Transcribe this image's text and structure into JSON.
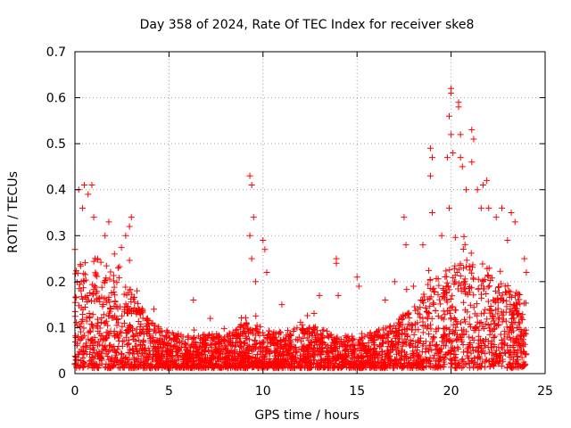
{
  "chart_data": {
    "type": "scatter",
    "title": "Day 358 of 2024, Rate Of TEC Index for receiver ske8",
    "xlabel": "GPS time / hours",
    "ylabel": "ROTI / TECUs",
    "xlim": [
      0,
      25
    ],
    "ylim": [
      0,
      0.7
    ],
    "xticks": [
      0,
      5,
      10,
      15,
      20,
      25
    ],
    "xtick_labels": [
      "0",
      "5",
      "10",
      "15",
      "20",
      "25"
    ],
    "yticks": [
      0,
      0.1,
      0.2,
      0.3,
      0.4,
      0.5,
      0.6,
      0.7
    ],
    "ytick_labels": [
      "0",
      "0.1",
      "0.2",
      "0.3",
      "0.4",
      "0.5",
      "0.6",
      "0.7"
    ],
    "grid": true,
    "marker": "plus",
    "color": "#ff0000",
    "x_data_extent": [
      0,
      24
    ],
    "notable_points": [
      {
        "x": 0.0,
        "y": 0.27
      },
      {
        "x": 0.2,
        "y": 0.4
      },
      {
        "x": 0.4,
        "y": 0.36
      },
      {
        "x": 0.5,
        "y": 0.41
      },
      {
        "x": 0.7,
        "y": 0.39
      },
      {
        "x": 0.9,
        "y": 0.41
      },
      {
        "x": 1.0,
        "y": 0.34
      },
      {
        "x": 1.2,
        "y": 0.25
      },
      {
        "x": 1.6,
        "y": 0.3
      },
      {
        "x": 1.8,
        "y": 0.33
      },
      {
        "x": 2.1,
        "y": 0.26
      },
      {
        "x": 2.3,
        "y": 0.23
      },
      {
        "x": 2.7,
        "y": 0.3
      },
      {
        "x": 2.9,
        "y": 0.32
      },
      {
        "x": 3.0,
        "y": 0.34
      },
      {
        "x": 3.3,
        "y": 0.18
      },
      {
        "x": 4.2,
        "y": 0.14
      },
      {
        "x": 6.3,
        "y": 0.16
      },
      {
        "x": 7.2,
        "y": 0.12
      },
      {
        "x": 9.3,
        "y": 0.43
      },
      {
        "x": 9.4,
        "y": 0.41
      },
      {
        "x": 9.5,
        "y": 0.34
      },
      {
        "x": 9.3,
        "y": 0.3
      },
      {
        "x": 9.4,
        "y": 0.25
      },
      {
        "x": 9.6,
        "y": 0.2
      },
      {
        "x": 10.0,
        "y": 0.29
      },
      {
        "x": 10.1,
        "y": 0.27
      },
      {
        "x": 10.2,
        "y": 0.22
      },
      {
        "x": 11.0,
        "y": 0.15
      },
      {
        "x": 13.0,
        "y": 0.17
      },
      {
        "x": 13.9,
        "y": 0.25
      },
      {
        "x": 13.9,
        "y": 0.24
      },
      {
        "x": 14.0,
        "y": 0.17
      },
      {
        "x": 15.0,
        "y": 0.21
      },
      {
        "x": 15.1,
        "y": 0.19
      },
      {
        "x": 16.5,
        "y": 0.16
      },
      {
        "x": 17.0,
        "y": 0.2
      },
      {
        "x": 17.5,
        "y": 0.34
      },
      {
        "x": 17.6,
        "y": 0.28
      },
      {
        "x": 18.0,
        "y": 0.19
      },
      {
        "x": 18.5,
        "y": 0.28
      },
      {
        "x": 18.9,
        "y": 0.49
      },
      {
        "x": 19.0,
        "y": 0.47
      },
      {
        "x": 18.9,
        "y": 0.43
      },
      {
        "x": 19.0,
        "y": 0.35
      },
      {
        "x": 19.5,
        "y": 0.3
      },
      {
        "x": 19.8,
        "y": 0.47
      },
      {
        "x": 19.9,
        "y": 0.36
      },
      {
        "x": 19.9,
        "y": 0.56
      },
      {
        "x": 20.0,
        "y": 0.62
      },
      {
        "x": 20.0,
        "y": 0.61
      },
      {
        "x": 20.0,
        "y": 0.52
      },
      {
        "x": 20.1,
        "y": 0.48
      },
      {
        "x": 20.4,
        "y": 0.59
      },
      {
        "x": 20.4,
        "y": 0.58
      },
      {
        "x": 20.5,
        "y": 0.52
      },
      {
        "x": 20.5,
        "y": 0.47
      },
      {
        "x": 20.6,
        "y": 0.45
      },
      {
        "x": 20.8,
        "y": 0.4
      },
      {
        "x": 21.1,
        "y": 0.53
      },
      {
        "x": 21.2,
        "y": 0.51
      },
      {
        "x": 21.1,
        "y": 0.46
      },
      {
        "x": 21.4,
        "y": 0.4
      },
      {
        "x": 21.7,
        "y": 0.41
      },
      {
        "x": 21.9,
        "y": 0.42
      },
      {
        "x": 21.6,
        "y": 0.36
      },
      {
        "x": 22.0,
        "y": 0.36
      },
      {
        "x": 22.4,
        "y": 0.34
      },
      {
        "x": 22.7,
        "y": 0.36
      },
      {
        "x": 23.2,
        "y": 0.35
      },
      {
        "x": 23.4,
        "y": 0.33
      },
      {
        "x": 23.0,
        "y": 0.29
      },
      {
        "x": 23.9,
        "y": 0.25
      },
      {
        "x": 24.0,
        "y": 0.22
      }
    ],
    "baseline_envelope": [
      {
        "x": 0,
        "typical_max": 0.22
      },
      {
        "x": 1,
        "typical_max": 0.24
      },
      {
        "x": 2,
        "typical_max": 0.22
      },
      {
        "x": 3,
        "typical_max": 0.17
      },
      {
        "x": 4,
        "typical_max": 0.1
      },
      {
        "x": 5,
        "typical_max": 0.08
      },
      {
        "x": 6,
        "typical_max": 0.07
      },
      {
        "x": 7,
        "typical_max": 0.08
      },
      {
        "x": 8,
        "typical_max": 0.07
      },
      {
        "x": 9,
        "typical_max": 0.1
      },
      {
        "x": 10,
        "typical_max": 0.09
      },
      {
        "x": 11,
        "typical_max": 0.08
      },
      {
        "x": 12,
        "typical_max": 0.09
      },
      {
        "x": 13,
        "typical_max": 0.09
      },
      {
        "x": 14,
        "typical_max": 0.07
      },
      {
        "x": 15,
        "typical_max": 0.07
      },
      {
        "x": 16,
        "typical_max": 0.08
      },
      {
        "x": 17,
        "typical_max": 0.1
      },
      {
        "x": 18,
        "typical_max": 0.14
      },
      {
        "x": 19,
        "typical_max": 0.2
      },
      {
        "x": 20,
        "typical_max": 0.22
      },
      {
        "x": 21,
        "typical_max": 0.24
      },
      {
        "x": 22,
        "typical_max": 0.22
      },
      {
        "x": 23,
        "typical_max": 0.18
      },
      {
        "x": 24,
        "typical_max": 0.15
      }
    ]
  }
}
